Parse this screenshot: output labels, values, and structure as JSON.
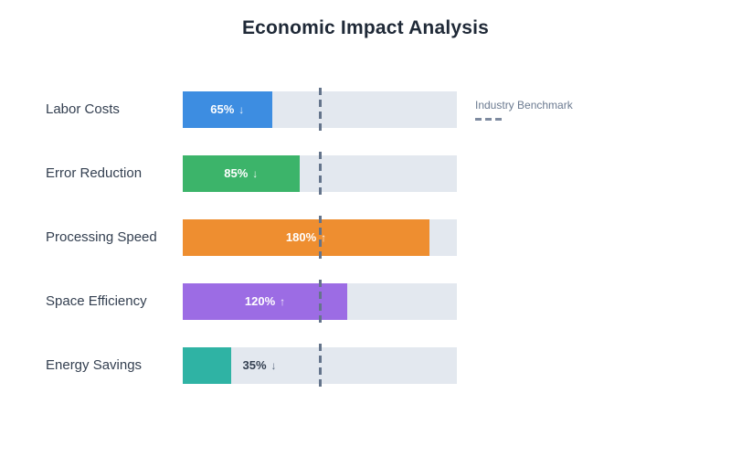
{
  "header": {
    "title": "Economic Impact Analysis",
    "title_color": "#1f2937"
  },
  "legend": {
    "label": "Industry Benchmark"
  },
  "chart_data": {
    "type": "bar",
    "orientation": "horizontal",
    "title": "Economic Impact Analysis",
    "categories": [
      "Labor Costs",
      "Error Reduction",
      "Processing Speed",
      "Space Efficiency",
      "Energy Savings"
    ],
    "values": [
      65,
      85,
      180,
      120,
      35
    ],
    "value_labels": [
      "65% ↓",
      "85% ↓",
      "180% ↑",
      "120% ↑",
      "35% ↓"
    ],
    "directions": [
      "down",
      "down",
      "up",
      "up",
      "down"
    ],
    "unit": "%",
    "xlim": [
      0,
      200
    ],
    "grid": false,
    "bar_colors": [
      "#3d8de1",
      "#3cb46a",
      "#ee8e30",
      "#9c6ce4",
      "#2fb3a4"
    ],
    "track_color": "#e3e8ef",
    "benchmark": {
      "value": 100,
      "label": "Industry Benchmark"
    },
    "benchmark_line_color": "#64748b",
    "legend_position": "top-right",
    "ylabel": "",
    "xlabel": ""
  }
}
